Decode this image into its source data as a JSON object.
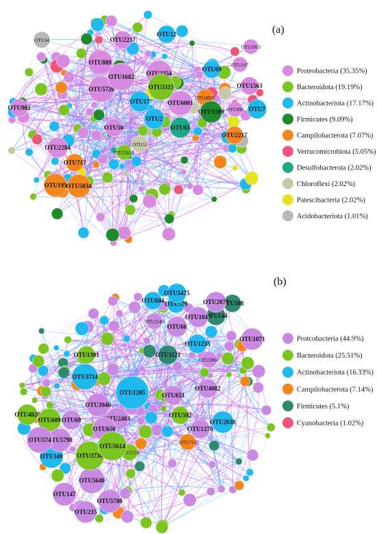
{
  "figure": {
    "panels": [
      {
        "id": "a",
        "label": "(a)",
        "legend": [
          {
            "name": "Proteobacteria",
            "pct": "(35.35%)",
            "color": "#d68be0"
          },
          {
            "name": "Bacteroidota",
            "pct": "(19.19%)",
            "color": "#7cc520"
          },
          {
            "name": "Actinobacteriota",
            "pct": "(17.17%)",
            "color": "#1fb8ef"
          },
          {
            "name": "Firmicutes",
            "pct": "(9.09%)",
            "color": "#1e8a2a"
          },
          {
            "name": "Campilobacterota",
            "pct": "(7.07%)",
            "color": "#f4861b"
          },
          {
            "name": "Verrucomicrobiota",
            "pct": "(5.05%)",
            "color": "#ef5577"
          },
          {
            "name": "Desulfobacterota",
            "pct": "(2.02%)",
            "color": "#1eaa88"
          },
          {
            "name": "Chloroflexi",
            "pct": "(2.02%)",
            "color": "#c8c8a8"
          },
          {
            "name": "Patescibacteria",
            "pct": "(2.02%)",
            "color": "#e4e41e"
          },
          {
            "name": "Acidobacteriota",
            "pct": "(1.01%)",
            "color": "#b8b8b8"
          }
        ],
        "nodes": [
          {
            "id": "OTU1682",
            "phylum": 0
          },
          {
            "id": "OTU889",
            "phylum": 0
          },
          {
            "id": "OTU5720",
            "phylum": 0
          },
          {
            "id": "OTU3354",
            "phylum": 0
          },
          {
            "id": "OTU6001",
            "phylum": 0
          },
          {
            "id": "OTU1563",
            "phylum": 0
          },
          {
            "id": "OTU902",
            "phylum": 0
          },
          {
            "id": "OTU2284",
            "phylum": 0
          },
          {
            "id": "OTU2237",
            "phylum": 0
          },
          {
            "id": "OTU1013",
            "phylum": 0
          },
          {
            "id": "OTU147",
            "phylum": 0
          },
          {
            "id": "OTU498",
            "phylum": 0
          },
          {
            "id": "OTU50",
            "phylum": 0
          },
          {
            "id": "OTU5614",
            "phylum": 1
          },
          {
            "id": "OTU5115",
            "phylum": 1
          },
          {
            "id": "OTU69",
            "phylum": 2
          },
          {
            "id": "OTU12",
            "phylum": 2
          },
          {
            "id": "OTU17",
            "phylum": 2
          },
          {
            "id": "OTU2",
            "phylum": 2
          },
          {
            "id": "OTU7",
            "phylum": 2
          },
          {
            "id": "OTU1599",
            "phylum": 3
          },
          {
            "id": "OTU195",
            "phylum": 4
          },
          {
            "id": "OTU5034",
            "phylum": 4
          },
          {
            "id": "OTU717",
            "phylum": 4
          },
          {
            "id": "OTU2217",
            "phylum": 4
          },
          {
            "id": "OTU4920",
            "phylum": 4
          },
          {
            "id": "OTU65",
            "phylum": 6
          },
          {
            "id": "OTU53",
            "phylum": 7
          },
          {
            "id": "OTU34",
            "phylum": 9
          }
        ]
      },
      {
        "id": "b",
        "label": "(b)",
        "legend": [
          {
            "name": "Protcobacteria",
            "pct": "(44.9%)",
            "color": "#c98ae3"
          },
          {
            "name": "Bacteroidota",
            "pct": "(25.51%)",
            "color": "#7cc520"
          },
          {
            "name": "Actinobacteriota",
            "pct": "(16.33%)",
            "color": "#1fb8ef"
          },
          {
            "name": "Campilobacterota",
            "pct": "(7.14%)",
            "color": "#f4861b"
          },
          {
            "name": "Firmicutes",
            "pct": "(5.1%)",
            "color": "#2e8a6e"
          },
          {
            "name": "Cyanobacteria",
            "pct": "(1.02%)",
            "color": "#ef5577"
          }
        ],
        "nodes": [
          {
            "id": "OTU1205",
            "phylum": 2
          },
          {
            "id": "OTU3714",
            "phylum": 2
          },
          {
            "id": "OTU349",
            "phylum": 2
          },
          {
            "id": "OTU5475",
            "phylum": 2
          },
          {
            "id": "OTU604",
            "phylum": 2
          },
          {
            "id": "OTU579",
            "phylum": 2
          },
          {
            "id": "OTU2038",
            "phylum": 2
          },
          {
            "id": "OTU1235",
            "phylum": 2
          },
          {
            "id": "OTU3730",
            "phylum": 1
          },
          {
            "id": "OTU5614",
            "phylum": 1
          },
          {
            "id": "OTU609",
            "phylum": 1
          },
          {
            "id": "OTU4820",
            "phylum": 1
          },
          {
            "id": "OTU592",
            "phylum": 1
          },
          {
            "id": "OTU1301",
            "phylum": 1
          },
          {
            "id": "OTU5718",
            "phylum": 1
          },
          {
            "id": "OTU574",
            "phylum": 0
          },
          {
            "id": "OTU5790",
            "phylum": 0
          },
          {
            "id": "OTU650",
            "phylum": 0
          },
          {
            "id": "OTU2403",
            "phylum": 0
          },
          {
            "id": "OTU3946",
            "phylum": 0
          },
          {
            "id": "OTU69",
            "phylum": 0
          },
          {
            "id": "OTU5640",
            "phylum": 0
          },
          {
            "id": "OTU147",
            "phylum": 0
          },
          {
            "id": "OTU5780",
            "phylum": 0
          },
          {
            "id": "OTU215",
            "phylum": 0
          },
          {
            "id": "OTU66",
            "phylum": 0
          },
          {
            "id": "OTU2540",
            "phylum": 0
          },
          {
            "id": "OTU1047",
            "phylum": 0
          },
          {
            "id": "OTU2079",
            "phylum": 0
          },
          {
            "id": "OTU1071",
            "phylum": 0
          },
          {
            "id": "OTU4082",
            "phylum": 0
          },
          {
            "id": "OTU651",
            "phylum": 0
          },
          {
            "id": "OTU1270",
            "phylum": 0
          },
          {
            "id": "OTU2860",
            "phylum": 0
          },
          {
            "id": "OTU144",
            "phylum": 4
          },
          {
            "id": "OTU598",
            "phylum": 4
          },
          {
            "id": "OTU1121",
            "phylum": 4
          },
          {
            "id": "OTU713",
            "phylum": 3
          }
        ]
      }
    ]
  }
}
